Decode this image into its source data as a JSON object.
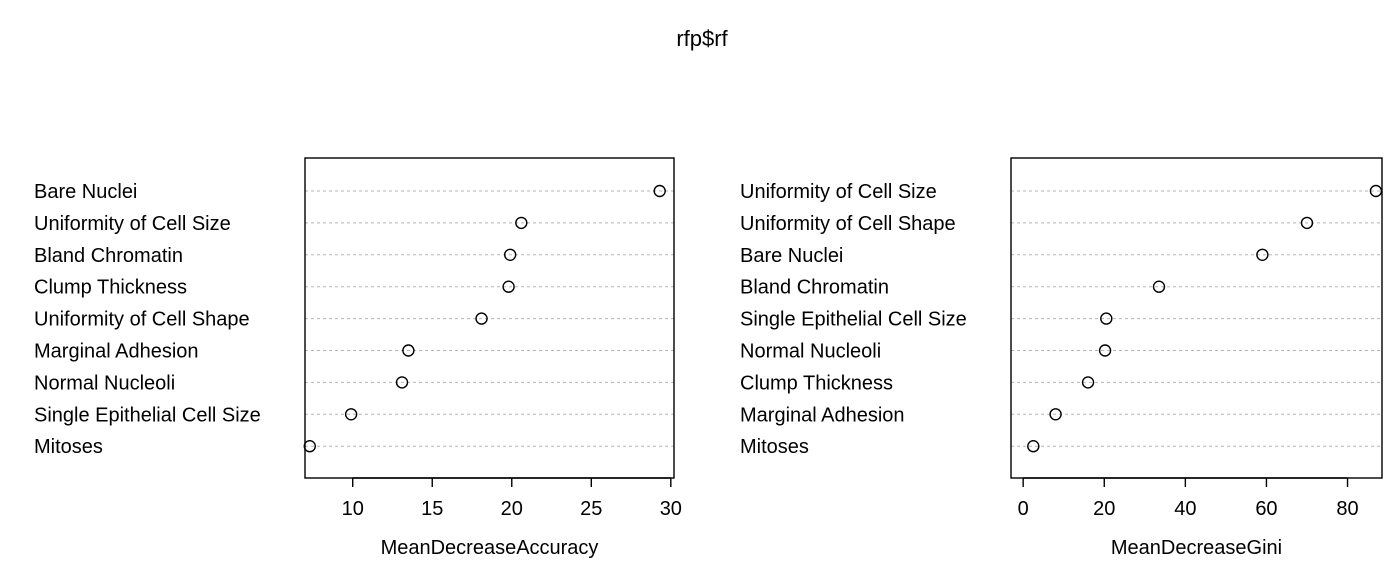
{
  "title": "rfp$rf",
  "chart_data": [
    {
      "type": "dotchart",
      "xlabel": "MeanDecreaseAccuracy",
      "xlim": [
        7,
        30.2
      ],
      "xticks": [
        10,
        15,
        20,
        25,
        30
      ],
      "grid": "horizontal-dotted",
      "categories": [
        "Bare Nuclei",
        "Uniformity of Cell Size",
        "Bland Chromatin",
        "Clump Thickness",
        "Uniformity of Cell Shape",
        "Marginal Adhesion",
        "Normal Nucleoli",
        "Single Epithelial Cell Size",
        "Mitoses"
      ],
      "values": [
        29.3,
        20.6,
        19.9,
        19.8,
        18.1,
        13.5,
        13.1,
        9.9,
        7.3
      ]
    },
    {
      "type": "dotchart",
      "xlabel": "MeanDecreaseGini",
      "xlim": [
        -3,
        88.5
      ],
      "xticks": [
        0,
        20,
        40,
        60,
        80
      ],
      "grid": "horizontal-dotted",
      "categories": [
        "Uniformity of Cell Size",
        "Uniformity of Cell Shape",
        "Bare Nuclei",
        "Bland Chromatin",
        "Single Epithelial Cell Size",
        "Normal Nucleoli",
        "Clump Thickness",
        "Marginal Adhesion",
        "Mitoses"
      ],
      "values": [
        87.0,
        70.0,
        59.0,
        33.5,
        20.5,
        20.2,
        16.0,
        8.0,
        2.5
      ]
    }
  ]
}
